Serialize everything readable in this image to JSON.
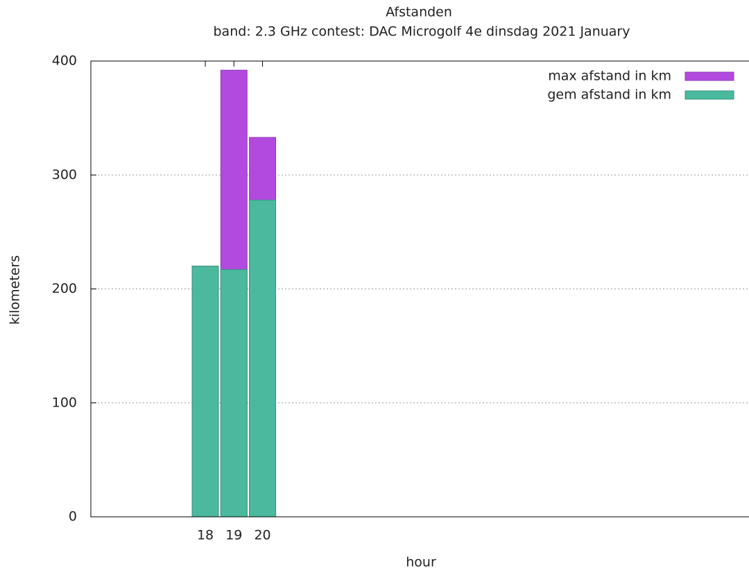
{
  "chart_data": {
    "type": "bar",
    "title": "Afstanden",
    "subtitle": "band: 2.3 GHz  contest: DAC Microgolf 4e dinsdag 2021 January",
    "x_label": "hour",
    "y_label": "kilometers",
    "x": [
      18,
      19,
      20
    ],
    "series": [
      {
        "name": "max afstand in km",
        "color": "#b24ae0",
        "values": [
          220,
          392,
          333
        ]
      },
      {
        "name": "gem afstand in km",
        "color": "#4ab99d",
        "values": [
          220,
          217,
          278
        ]
      }
    ],
    "xlim": [
      14,
      37
    ],
    "xticks": [
      18,
      19,
      20
    ],
    "ylim": [
      0,
      400
    ],
    "yticks": [
      0,
      100,
      200,
      300,
      400
    ],
    "grid": true,
    "legend": "top-right"
  }
}
